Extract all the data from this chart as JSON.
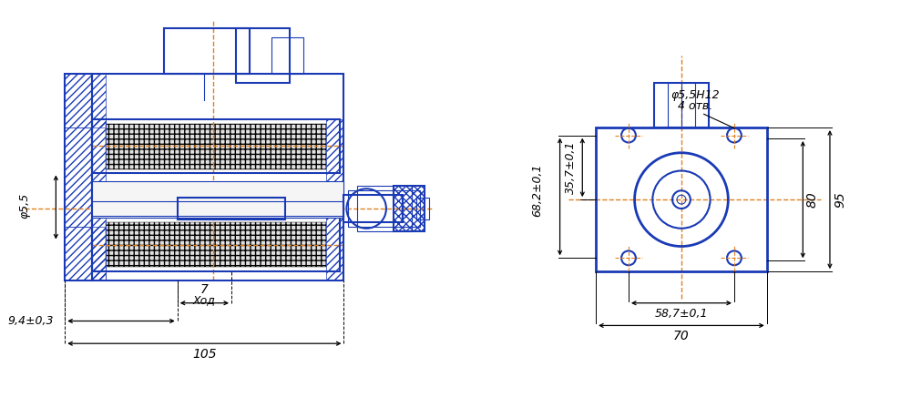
{
  "blue": "#1a3ab5",
  "orange": "#e08020",
  "black": "#000000",
  "bg": "#ffffff",
  "lw_main": 1.5,
  "lw_thin": 0.8,
  "lw_dim": 0.9,
  "fig_w": 10.0,
  "fig_h": 4.59,
  "annotations": {
    "phi55": "φ5,5",
    "dim_105": "105",
    "dim_9": "9,4±0,3",
    "dim_7": "7",
    "xod": "Ход",
    "phi55H12": "φ5,5H12",
    "otv": "4 отв.",
    "dim_682": "68,2±0,1",
    "dim_357": "35,7±0,1",
    "dim_587": "58,7±0,1",
    "dim_70": "70",
    "dim_80": "80",
    "dim_95": "95"
  }
}
